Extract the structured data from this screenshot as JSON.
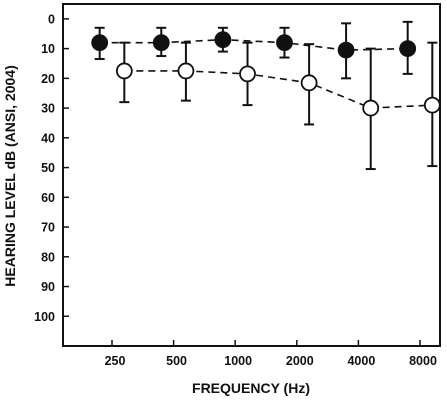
{
  "chart_data": {
    "type": "line",
    "title": "",
    "xlabel": "FREQUENCY (Hz)",
    "ylabel": "HEARING LEVEL dB (ANSI, 2004)",
    "x_categories": [
      "250",
      "500",
      "1000",
      "2000",
      "4000",
      "8000"
    ],
    "y_ticks": [
      "0",
      "10",
      "20",
      "30",
      "40",
      "50",
      "60",
      "70",
      "80",
      "90",
      "100"
    ],
    "ylim": [
      -5,
      110
    ],
    "y_inverted": true,
    "grid": false,
    "series": [
      {
        "marker": "filled-circle",
        "line_style": "dashed",
        "color": "#111111",
        "x_offset": -0.2,
        "values": [
          8,
          8,
          7,
          8,
          10.5,
          10
        ],
        "error_low": [
          3,
          3,
          3,
          3,
          1.5,
          1
        ],
        "error_high": [
          13.5,
          12.5,
          11,
          13,
          20,
          18.5
        ]
      },
      {
        "marker": "open-circle",
        "line_style": "dashed",
        "color": "#111111",
        "x_offset": 0.2,
        "values": [
          17.5,
          17.5,
          18.5,
          21.5,
          30,
          29
        ],
        "error_low": [
          8,
          8,
          8,
          8.5,
          10,
          8
        ],
        "error_high": [
          28,
          27.5,
          29,
          35.5,
          50.5,
          49.5
        ]
      }
    ]
  }
}
